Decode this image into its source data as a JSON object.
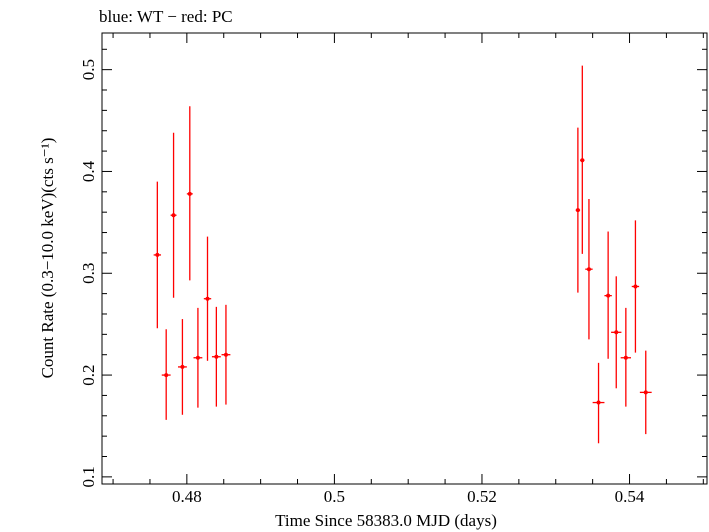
{
  "chart_data": {
    "type": "scatter",
    "title": "blue: WT − red: PC",
    "xlabel": "Time Since 58383.0 MJD (days)",
    "ylabel": "Count Rate (0.3−10.0 keV)(cts s⁻¹)",
    "xlim": [
      0.4685,
      0.5505
    ],
    "ylim": [
      0.093,
      0.536
    ],
    "xticks": [
      0.48,
      0.5,
      0.52,
      0.54
    ],
    "xtick_labels": [
      "0.48",
      "0.5",
      "0.52",
      "0.54"
    ],
    "yticks": [
      0.1,
      0.2,
      0.3,
      0.4,
      0.5
    ],
    "ytick_labels": [
      "0.1",
      "0.2",
      "0.3",
      "0.4",
      "0.5"
    ],
    "grid": false,
    "series": [
      {
        "color": "#ff0000",
        "points": [
          {
            "x": 0.476,
            "xerr": 0.0005,
            "y": 0.318,
            "yerr_low": 0.072,
            "yerr_high": 0.072
          },
          {
            "x": 0.4772,
            "xerr": 0.0006,
            "y": 0.2,
            "yerr_low": 0.044,
            "yerr_high": 0.045
          },
          {
            "x": 0.4782,
            "xerr": 0.0004,
            "y": 0.357,
            "yerr_low": 0.081,
            "yerr_high": 0.081
          },
          {
            "x": 0.4794,
            "xerr": 0.0006,
            "y": 0.208,
            "yerr_low": 0.047,
            "yerr_high": 0.047
          },
          {
            "x": 0.4804,
            "xerr": 0.0004,
            "y": 0.378,
            "yerr_low": 0.085,
            "yerr_high": 0.086
          },
          {
            "x": 0.4815,
            "xerr": 0.0006,
            "y": 0.217,
            "yerr_low": 0.049,
            "yerr_high": 0.049
          },
          {
            "x": 0.4828,
            "xerr": 0.0005,
            "y": 0.275,
            "yerr_low": 0.061,
            "yerr_high": 0.061
          },
          {
            "x": 0.484,
            "xerr": 0.0006,
            "y": 0.218,
            "yerr_low": 0.049,
            "yerr_high": 0.049
          },
          {
            "x": 0.4853,
            "xerr": 0.0006,
            "y": 0.22,
            "yerr_low": 0.049,
            "yerr_high": 0.049
          },
          {
            "x": 0.533,
            "xerr": 0.0003,
            "y": 0.362,
            "yerr_low": 0.081,
            "yerr_high": 0.081
          },
          {
            "x": 0.5336,
            "xerr": 0.0003,
            "y": 0.411,
            "yerr_low": 0.092,
            "yerr_high": 0.093
          },
          {
            "x": 0.5345,
            "xerr": 0.0005,
            "y": 0.304,
            "yerr_low": 0.069,
            "yerr_high": 0.069
          },
          {
            "x": 0.5358,
            "xerr": 0.0008,
            "y": 0.173,
            "yerr_low": 0.04,
            "yerr_high": 0.039
          },
          {
            "x": 0.5371,
            "xerr": 0.0005,
            "y": 0.278,
            "yerr_low": 0.062,
            "yerr_high": 0.063
          },
          {
            "x": 0.5382,
            "xerr": 0.0007,
            "y": 0.242,
            "yerr_low": 0.055,
            "yerr_high": 0.055
          },
          {
            "x": 0.5395,
            "xerr": 0.0007,
            "y": 0.217,
            "yerr_low": 0.048,
            "yerr_high": 0.049
          },
          {
            "x": 0.5408,
            "xerr": 0.0005,
            "y": 0.287,
            "yerr_low": 0.065,
            "yerr_high": 0.065
          },
          {
            "x": 0.5422,
            "xerr": 0.0008,
            "y": 0.183,
            "yerr_low": 0.041,
            "yerr_high": 0.041
          }
        ]
      }
    ]
  }
}
